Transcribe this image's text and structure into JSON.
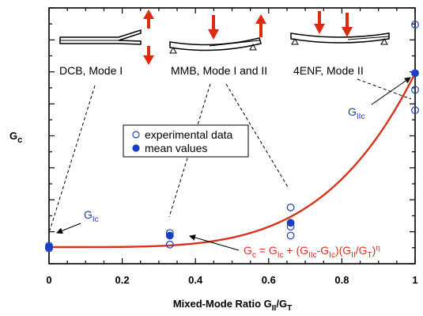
{
  "colors": {
    "fit_line": "#d8341c",
    "marker": "#1a3fc4",
    "arrow": "#e02a10",
    "axis": "#000000"
  },
  "chart_data": {
    "type": "scatter",
    "title": "",
    "xlabel": "Mixed-Mode Ratio G",
    "xlabel_sub": "II",
    "xlabel_sep": "/G",
    "xlabel_sub2": "T",
    "ylabel": "G",
    "ylabel_sub": "c",
    "xlim": [
      0,
      1
    ],
    "ylim": [
      0,
      1
    ],
    "x_ticks": [
      0,
      0.2,
      0.4,
      0.6,
      0.8,
      1
    ],
    "x_tick_labels": [
      "0",
      "0.2",
      "0.4",
      "0.6",
      "0.8",
      "1"
    ],
    "y_tick_labels_shown": false,
    "grid": false,
    "legend": {
      "position": "center",
      "entries": [
        {
          "label": "experimental data",
          "marker": "open-circle"
        },
        {
          "label": "mean values",
          "marker": "filled-circle"
        }
      ]
    },
    "series": [
      {
        "name": "experimental data",
        "marker": "open-circle",
        "points": [
          {
            "x": 0,
            "y": 0.065
          },
          {
            "x": 0,
            "y": 0.07
          },
          {
            "x": 0,
            "y": 0.06
          },
          {
            "x": 0.33,
            "y": 0.12
          },
          {
            "x": 0.33,
            "y": 0.075
          },
          {
            "x": 0.66,
            "y": 0.22
          },
          {
            "x": 0.66,
            "y": 0.145
          },
          {
            "x": 0.66,
            "y": 0.11
          },
          {
            "x": 1,
            "y": 0.935
          },
          {
            "x": 1,
            "y": 0.68
          },
          {
            "x": 1,
            "y": 0.6
          }
        ]
      },
      {
        "name": "mean values",
        "marker": "filled-circle",
        "points": [
          {
            "x": 0,
            "y": 0.065
          },
          {
            "x": 0.33,
            "y": 0.11
          },
          {
            "x": 0.66,
            "y": 0.16
          },
          {
            "x": 1,
            "y": 0.745
          }
        ]
      },
      {
        "name": "fit",
        "type": "line",
        "g_Ic": 0.065,
        "g_IIc": 0.745,
        "eta": 4.2
      }
    ],
    "annotations": {
      "g_ic_label": {
        "main": "G",
        "sub": "Ic"
      },
      "g_iic_label": {
        "main": "G",
        "sub": "IIc"
      },
      "formula": {
        "p1": "G",
        "p1_sub": "c",
        "p2": " = G",
        "p2_sub": "Ic",
        "p3": " + (G",
        "p3_sub": "IIc",
        "p4": "-G",
        "p4_sub": "Ic",
        "p5": ")(G",
        "p5_sub": "II",
        "p6": "/G",
        "p6_sub": "T",
        "p7": ")",
        "p7_sup": "η"
      },
      "specimens": [
        {
          "label": "DCB, Mode I"
        },
        {
          "label": "MMB, Mode I and II"
        },
        {
          "label": "4ENF, Mode II"
        }
      ]
    }
  }
}
